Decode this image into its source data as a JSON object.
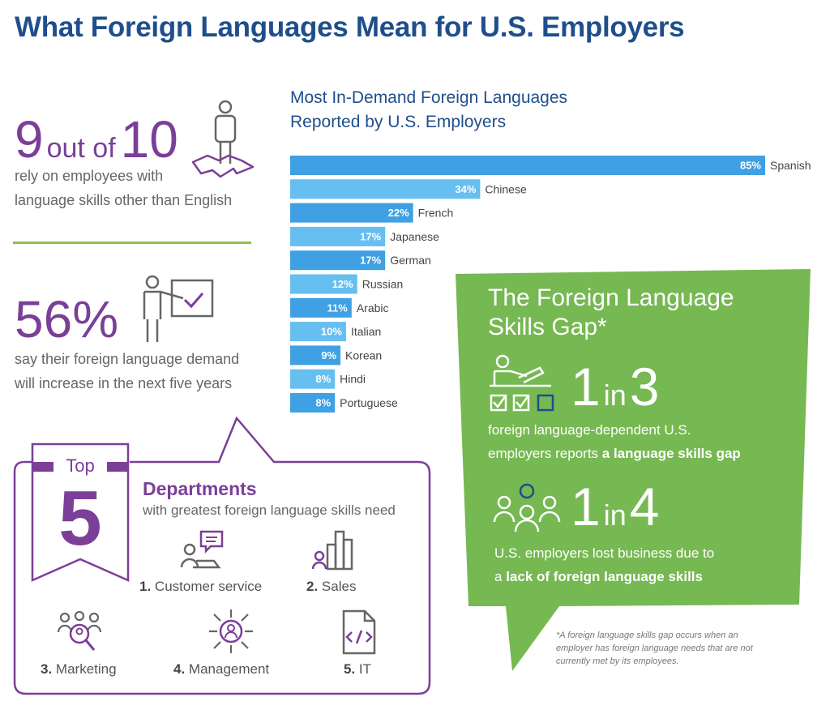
{
  "title": "What Foreign Languages Mean for U.S. Employers",
  "stat1": {
    "number": "9",
    "connector": "out of",
    "total": "10",
    "line1": "rely on employees with",
    "line2": "language skills other than English"
  },
  "stat2": {
    "number": "56%",
    "line1": "say their foreign language demand",
    "line2": "will increase in the next five years"
  },
  "chart_data": {
    "type": "bar",
    "orientation": "horizontal",
    "title_line1": "Most In-Demand Foreign Languages",
    "title_line2": "Reported by U.S. Employers",
    "categories": [
      "Spanish",
      "Chinese",
      "French",
      "Japanese",
      "German",
      "Russian",
      "Arabic",
      "Italian",
      "Korean",
      "Hindi",
      "Portuguese"
    ],
    "values": [
      85,
      34,
      22,
      17,
      17,
      12,
      11,
      10,
      9,
      8,
      8
    ],
    "value_suffix": "%",
    "xlim": [
      0,
      85
    ],
    "grid": false,
    "colors": {
      "dark": "#3fa0e3",
      "light": "#66bff0"
    }
  },
  "skills_gap": {
    "title_line1": "The Foreign Language",
    "title_line2": "Skills Gap*",
    "stat1": {
      "a": "1",
      "in": "in",
      "b": "3",
      "line1": "foreign language-dependent U.S.",
      "line2_plain": "employers reports ",
      "line2_bold": "a language skills gap"
    },
    "stat2": {
      "a": "1",
      "in": "in",
      "b": "4",
      "line1": "U.S. employers lost business due to",
      "line2_plain": "a ",
      "line2_bold": "lack of foreign language skills"
    },
    "footnote": "*A foreign language skills gap occurs when an employer has foreign language needs that are not currently met by its employees.",
    "color": "#76b852"
  },
  "departments": {
    "top_label": "Top",
    "top_number": "5",
    "title": "Departments",
    "subtitle": "with greatest foreign language skills need",
    "items": [
      {
        "num": "1.",
        "label": "Customer service",
        "icon": "customer-service-icon"
      },
      {
        "num": "2.",
        "label": "Sales",
        "icon": "sales-chart-icon"
      },
      {
        "num": "3.",
        "label": "Marketing",
        "icon": "marketing-search-icon"
      },
      {
        "num": "4.",
        "label": "Management",
        "icon": "management-network-icon"
      },
      {
        "num": "5.",
        "label": "IT",
        "icon": "code-file-icon"
      }
    ],
    "color": "#7b3f98"
  }
}
